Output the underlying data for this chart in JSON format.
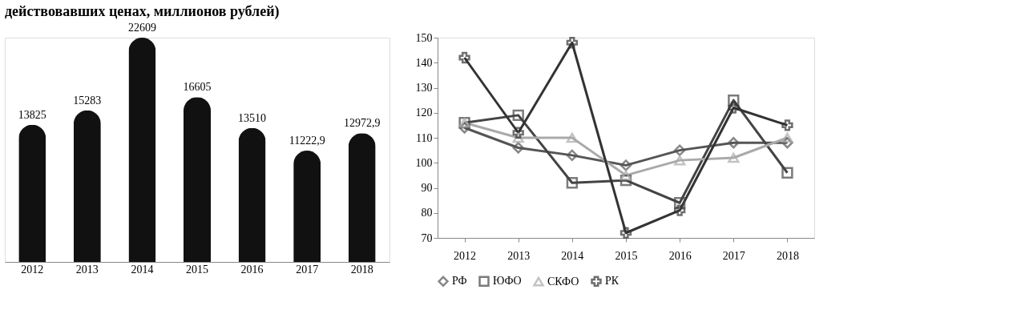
{
  "chart_data": [
    {
      "type": "bar",
      "title": "действовавших ценах, миллионов рублей)",
      "categories": [
        "2012",
        "2013",
        "2014",
        "2015",
        "2016",
        "2017",
        "2018"
      ],
      "values": [
        13825,
        15283,
        22609,
        16605,
        13510,
        11222.9,
        12972.9
      ],
      "value_labels": [
        "13825",
        "15283",
        "22609",
        "16605",
        "13510",
        "11222,9",
        "12972,9"
      ],
      "color": "#111111"
    },
    {
      "type": "line",
      "categories": [
        "2012",
        "2013",
        "2014",
        "2015",
        "2016",
        "2017",
        "2018"
      ],
      "ylim": [
        70,
        150
      ],
      "yticks": [
        70,
        80,
        90,
        100,
        110,
        120,
        130,
        140,
        150
      ],
      "grid": false,
      "legend": "bottom",
      "line_style": "solid",
      "series": [
        {
          "name": "РФ",
          "color": "#555555",
          "marker": "diamond",
          "values": [
            114,
            106,
            103,
            99,
            105,
            108,
            108
          ]
        },
        {
          "name": "ЮФО",
          "color": "#444444",
          "marker": "square",
          "values": [
            116,
            119,
            92,
            93,
            84,
            125,
            96
          ]
        },
        {
          "name": "СКФО",
          "color": "#aaaaaa",
          "marker": "triangle",
          "values": [
            116,
            110,
            110,
            95,
            101,
            102,
            110
          ]
        },
        {
          "name": "РК",
          "color": "#333333",
          "marker": "cross",
          "values": [
            142,
            112,
            148,
            72,
            81,
            122,
            115
          ]
        }
      ]
    }
  ]
}
